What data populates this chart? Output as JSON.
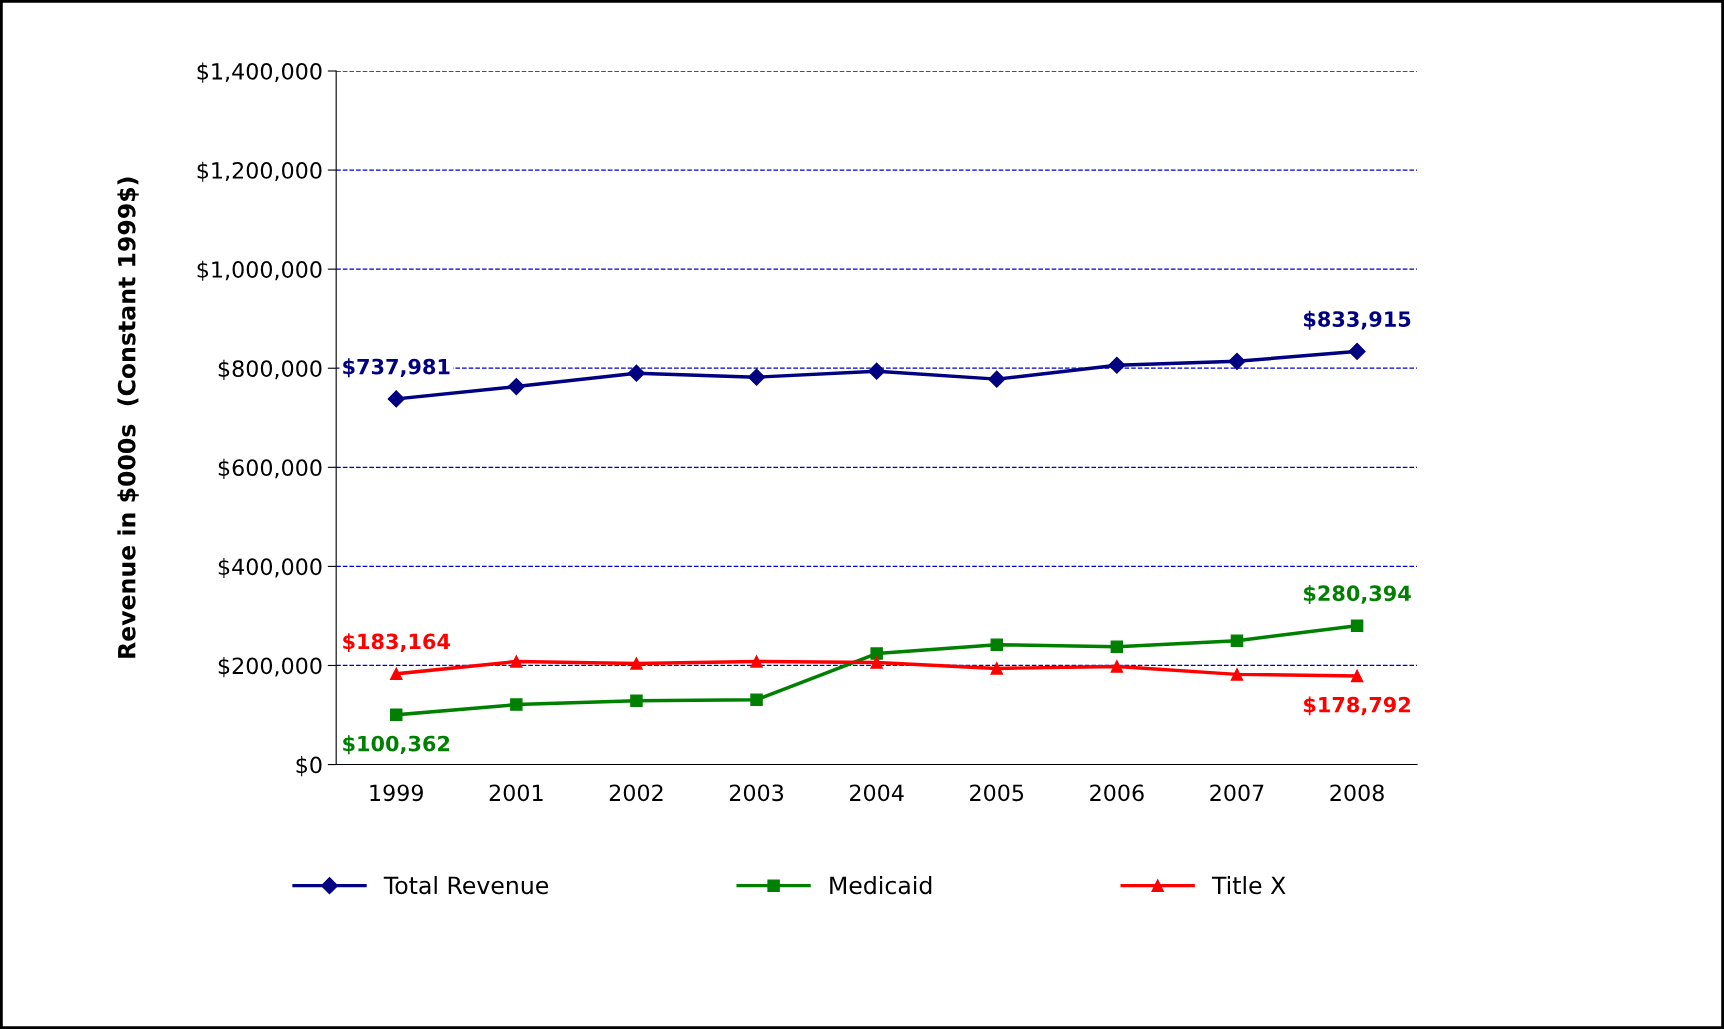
{
  "chart_data": {
    "type": "line",
    "ylabel": "Revenue in $000s  (Constant 1999$)",
    "categories": [
      "1999",
      "2001",
      "2002",
      "2003",
      "2004",
      "2005",
      "2006",
      "2007",
      "2008"
    ],
    "series": [
      {
        "name": "Total Revenue",
        "color": "#000080",
        "marker": "diamond",
        "values": [
          737981,
          763000,
          790000,
          782000,
          794000,
          778000,
          806000,
          814000,
          833915
        ],
        "value_labels": [
          "$737,981",
          null,
          null,
          null,
          null,
          null,
          null,
          null,
          "$833,915"
        ]
      },
      {
        "name": "Medicaid",
        "color": "#008000",
        "marker": "square",
        "values": [
          100362,
          121000,
          129000,
          131000,
          224000,
          242000,
          238000,
          250000,
          280394
        ],
        "value_labels": [
          "$100,362",
          null,
          null,
          null,
          null,
          null,
          null,
          null,
          "$280,394"
        ]
      },
      {
        "name": "Title X",
        "color": "#ff0000",
        "marker": "triangle",
        "values": [
          183164,
          208000,
          204000,
          208000,
          206000,
          194000,
          198000,
          182000,
          178792
        ],
        "value_labels": [
          "$183,164",
          null,
          null,
          null,
          null,
          null,
          null,
          null,
          "$178,792"
        ]
      }
    ],
    "ylim": [
      0,
      1400000
    ],
    "yticks": [
      {
        "value": 0,
        "label": "$0"
      },
      {
        "value": 200000,
        "label": "$200,000"
      },
      {
        "value": 400000,
        "label": "$400,000"
      },
      {
        "value": 600000,
        "label": "$600,000"
      },
      {
        "value": 800000,
        "label": "$800,000"
      },
      {
        "value": 1000000,
        "label": "$1,000,000"
      },
      {
        "value": 1200000,
        "label": "$1,200,000"
      },
      {
        "value": 1400000,
        "label": "$1,400,000"
      }
    ],
    "grid": "y",
    "legend": "bottom",
    "line_style": "solid"
  }
}
